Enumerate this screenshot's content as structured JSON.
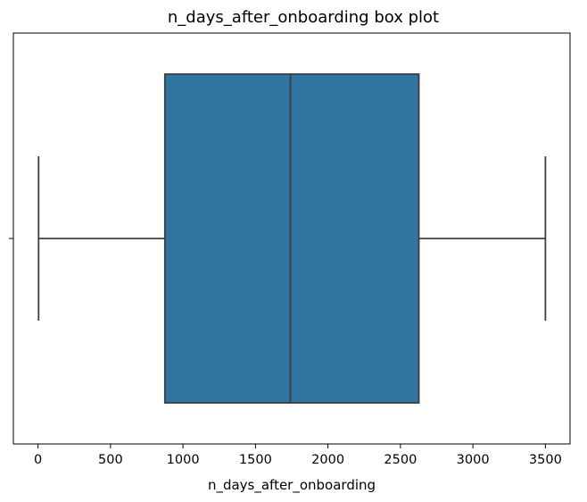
{
  "chart_data": {
    "type": "box",
    "title": "n_days_after_onboarding box plot",
    "xlabel": "n_days_after_onboarding",
    "ylabel": "",
    "xlim": [
      -170,
      3670
    ],
    "xticks": [
      0,
      500,
      1000,
      1500,
      2000,
      2500,
      3000,
      3500
    ],
    "xtick_labels": [
      "0",
      "500",
      "1000",
      "1500",
      "2000",
      "2500",
      "3000",
      "3500"
    ],
    "grid": false,
    "orientation": "horizontal",
    "box": {
      "whisker_low": 4,
      "q1": 875,
      "median": 1741,
      "q3": 2627,
      "whisker_high": 3500
    },
    "colors": {
      "box_fill": "#3274a1",
      "lines": "#3d3d3d",
      "axes": "#000000"
    }
  }
}
